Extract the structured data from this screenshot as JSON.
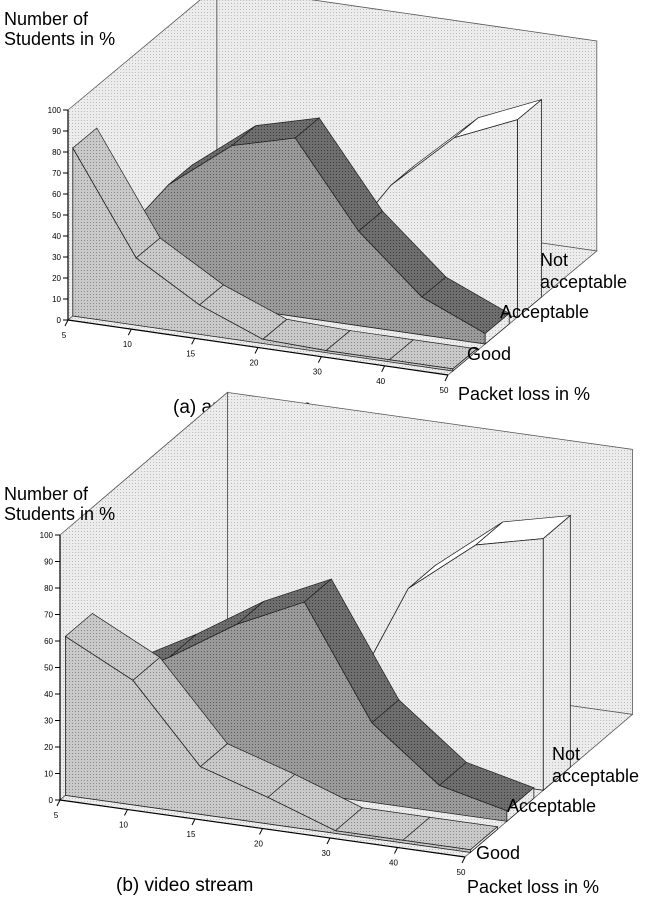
{
  "chart_data": [
    {
      "type": "area",
      "panel": "a",
      "title": "(a) audio stream",
      "y_axis_title": [
        "Number of",
        "Students in %"
      ],
      "x_axis_title": "Packet loss in %",
      "ylim": [
        0,
        100
      ],
      "y_ticks": [
        "0",
        "10",
        "20",
        "30",
        "40",
        "50",
        "60",
        "70",
        "80",
        "90",
        "100"
      ],
      "x_ticks": [
        "5",
        "10",
        "15",
        "20",
        "30",
        "40",
        "50"
      ],
      "x": [
        5,
        10,
        15,
        20,
        30,
        40,
        50
      ],
      "depth_labels": [
        "Good",
        "Acceptable",
        [
          "Not",
          "acceptable"
        ]
      ],
      "series": [
        {
          "name": "Good",
          "values": [
            80,
            32,
            14,
            2,
            1,
            1,
            1
          ]
        },
        {
          "name": "Acceptable",
          "values": [
            17,
            54,
            77,
            85,
            45,
            18,
            5
          ]
        },
        {
          "name": "Not acceptable",
          "values": [
            3,
            14,
            9,
            13,
            54,
            81,
            94
          ]
        }
      ]
    },
    {
      "type": "area",
      "panel": "b",
      "title": "(b) video stream",
      "y_axis_title": [
        "Number of",
        "Students in %"
      ],
      "x_axis_title": "Packet loss in %",
      "ylim": [
        0,
        100
      ],
      "y_ticks": [
        "0",
        "10",
        "20",
        "30",
        "40",
        "50",
        "60",
        "70",
        "80",
        "90",
        "100"
      ],
      "x_ticks": [
        "5",
        "10",
        "15",
        "20",
        "30",
        "40",
        "50"
      ],
      "x": [
        5,
        10,
        15,
        20,
        30,
        40,
        50
      ],
      "depth_labels": [
        "Good",
        "Acceptable",
        [
          "Not",
          "acceptable"
        ]
      ],
      "series": [
        {
          "name": "Good",
          "values": [
            60,
            47,
            18,
            10,
            1,
            1,
            1
          ]
        },
        {
          "name": "Acceptable",
          "values": [
            30,
            44,
            60,
            72,
            30,
            10,
            4
          ]
        },
        {
          "name": "Not acceptable",
          "values": [
            10,
            9,
            22,
            18,
            69,
            89,
            95
          ]
        }
      ]
    }
  ]
}
